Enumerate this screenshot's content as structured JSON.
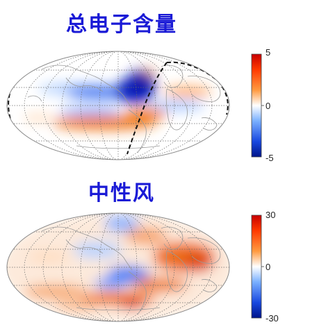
{
  "panels": [
    {
      "title": "总电子含量",
      "colorbar": {
        "max_label": "5",
        "mid_label": "0",
        "min_label": "-5"
      }
    },
    {
      "title": "中性风",
      "colorbar": {
        "max_label": "30",
        "mid_label": "0",
        "min_label": "-30"
      }
    }
  ],
  "colors": {
    "title": "#1a1ad6",
    "positive": "#e8711a",
    "strong_positive": "#d40f12",
    "negative": "#1a4fe0",
    "strong_negative": "#0a1aa8"
  }
}
